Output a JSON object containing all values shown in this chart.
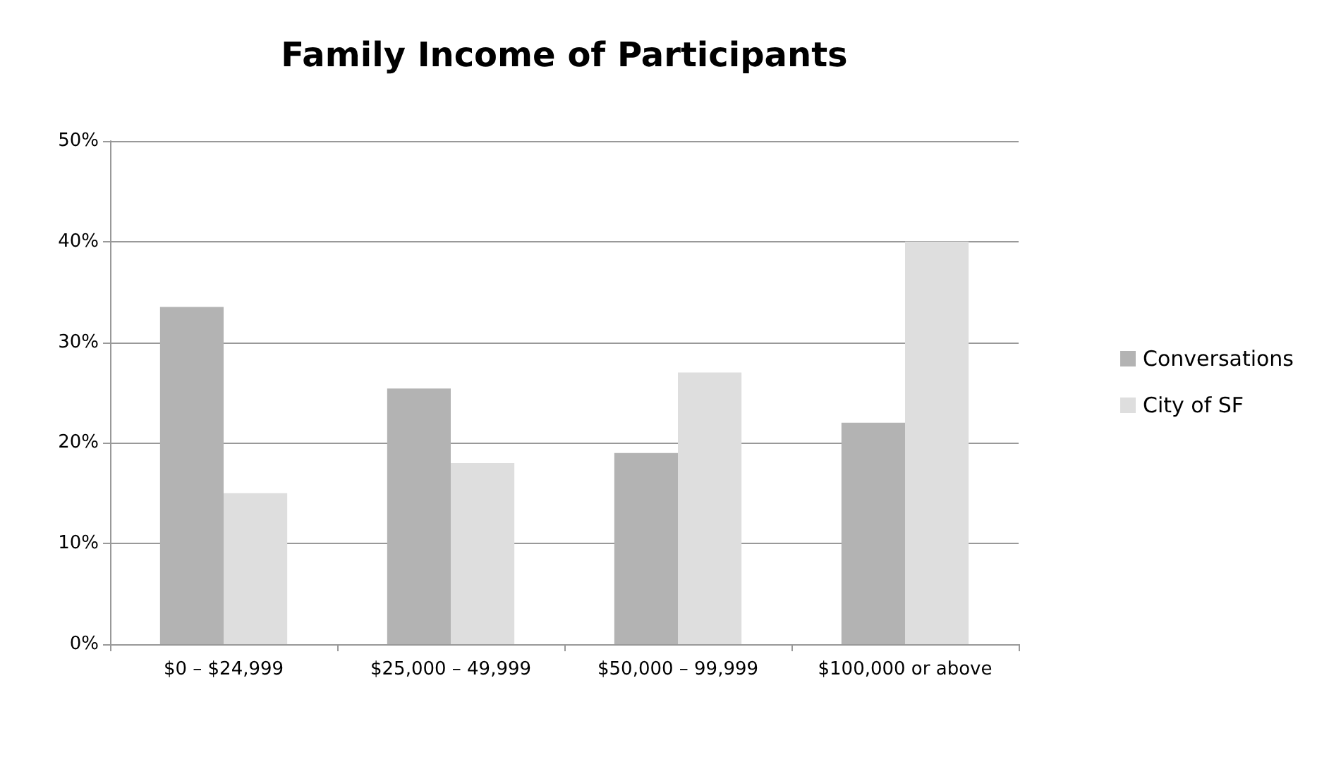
{
  "chart_data": {
    "type": "bar",
    "title": "Family Income of Participants",
    "categories": [
      "$0 – $24,999",
      "$25,000 – 49,999",
      "$50,000 – 99,999",
      "$100,000 or above"
    ],
    "series": [
      {
        "name": "Conversations",
        "color": "#b3b3b3",
        "values": [
          33.5,
          25.4,
          19,
          22
        ]
      },
      {
        "name": "City of SF",
        "color": "#dedede",
        "values": [
          15,
          18,
          27,
          40
        ]
      }
    ],
    "ylim": [
      0,
      50
    ],
    "yticks": [
      {
        "value": 0,
        "label": "0%"
      },
      {
        "value": 10,
        "label": "10%"
      },
      {
        "value": 20,
        "label": "20%"
      },
      {
        "value": 30,
        "label": "30%"
      },
      {
        "value": 40,
        "label": "40%"
      },
      {
        "value": 50,
        "label": "50%"
      }
    ],
    "grid": "y",
    "legend": "right"
  }
}
